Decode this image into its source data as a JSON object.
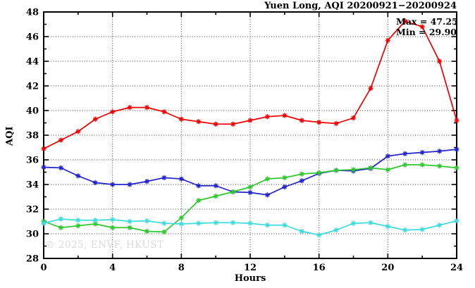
{
  "figure": {
    "watermark": "© 2025, ENVF, HKUST",
    "annotation": {
      "max_label": "Max = 47.25",
      "min_label": "Min = 29.90"
    }
  },
  "chart_data": {
    "type": "line",
    "title": "Yuen Long, AQI 20200921−20200924",
    "xlabel": "Hours",
    "ylabel": "AQI",
    "xlim": [
      0,
      24
    ],
    "ylim": [
      28,
      48
    ],
    "x_major_step": 4,
    "x_minor_step": 2,
    "y_major_step": 2,
    "y_minor_step": 1,
    "grid": true,
    "legend": "none",
    "max_value": 47.25,
    "min_value": 29.9,
    "x": [
      0,
      1,
      2,
      3,
      4,
      5,
      6,
      7,
      8,
      9,
      10,
      11,
      12,
      13,
      14,
      15,
      16,
      17,
      18,
      19,
      20,
      21,
      22,
      23,
      24
    ],
    "series": [
      {
        "name": "red",
        "color": "#ee0000",
        "values": [
          36.9,
          37.6,
          38.3,
          39.3,
          39.9,
          40.25,
          40.25,
          39.9,
          39.3,
          39.1,
          38.9,
          38.9,
          39.2,
          39.5,
          39.6,
          39.2,
          39.05,
          38.95,
          39.4,
          41.8,
          45.7,
          47.25,
          46.8,
          44.0,
          39.2
        ]
      },
      {
        "name": "blue",
        "color": "#2222cc",
        "values": [
          35.4,
          35.35,
          34.7,
          34.15,
          34.0,
          34.0,
          34.25,
          34.55,
          34.45,
          33.9,
          33.9,
          33.4,
          33.35,
          33.15,
          33.8,
          34.3,
          34.9,
          35.15,
          35.1,
          35.3,
          36.3,
          36.5,
          36.6,
          36.7,
          36.85
        ]
      },
      {
        "name": "green",
        "color": "#2ec72e",
        "values": [
          31.0,
          30.5,
          30.65,
          30.8,
          30.5,
          30.5,
          30.2,
          30.15,
          31.3,
          32.7,
          33.05,
          33.4,
          33.8,
          34.45,
          34.55,
          34.85,
          34.95,
          35.15,
          35.2,
          35.35,
          35.2,
          35.6,
          35.6,
          35.5,
          35.35
        ]
      },
      {
        "name": "cyan",
        "color": "#3ddcdc",
        "values": [
          30.85,
          31.2,
          31.1,
          31.1,
          31.15,
          31.0,
          31.05,
          30.85,
          30.8,
          30.85,
          30.9,
          30.9,
          30.85,
          30.7,
          30.7,
          30.2,
          29.9,
          30.3,
          30.85,
          30.9,
          30.6,
          30.3,
          30.35,
          30.7,
          31.05
        ]
      }
    ]
  }
}
